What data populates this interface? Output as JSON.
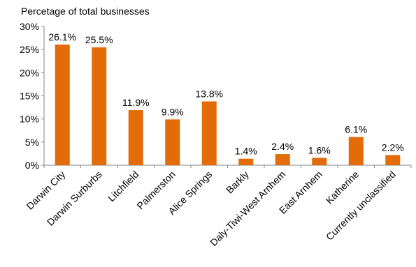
{
  "chart_data": {
    "type": "bar",
    "title": "",
    "ylabel": "Percetage of total businesses",
    "xlabel": "",
    "categories": [
      "Darwin City",
      "Darwin Surburbs",
      "Litchfield",
      "Palmerston",
      "Alice Springs",
      "Barkly",
      "Daly-Tiwi-West Arnhem",
      "East Arnhem",
      "Katherine",
      "Currently unclassified"
    ],
    "values": [
      26.1,
      25.5,
      11.9,
      9.9,
      13.8,
      1.4,
      2.4,
      1.6,
      6.1,
      2.2
    ],
    "data_labels": [
      "26.1%",
      "25.5%",
      "11.9%",
      "9.9%",
      "13.8%",
      "1.4%",
      "2.4%",
      "1.6%",
      "6.1%",
      "2.2%"
    ],
    "yticks": [
      0,
      5,
      10,
      15,
      20,
      25,
      30
    ],
    "ytick_labels": [
      "0%",
      "5%",
      "10%",
      "15%",
      "20%",
      "25%",
      "30%"
    ],
    "ylim": [
      0,
      30
    ],
    "bar_color": "#E36C09",
    "grid": false,
    "legend": "none"
  }
}
